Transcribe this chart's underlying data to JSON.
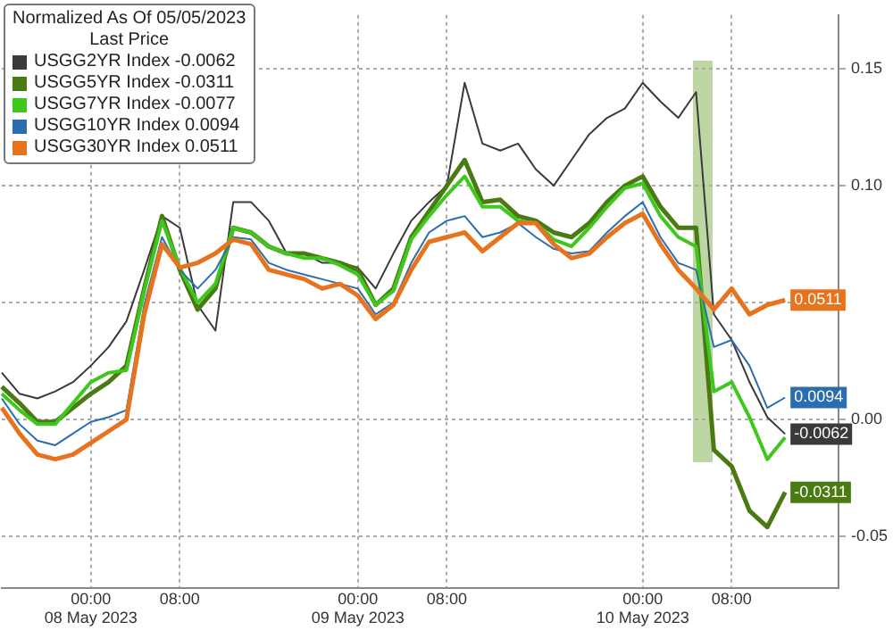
{
  "chart_data": {
    "type": "line",
    "title": "Normalized As Of 05/05/2023",
    "legend_title": "Last Price",
    "legend": "top left",
    "grid": true,
    "categories": [
      null,
      null,
      null,
      null,
      null,
      "00:00\n08 May 2023",
      null,
      null,
      null,
      null,
      "08:00",
      null,
      null,
      null,
      null,
      null,
      null,
      null,
      null,
      null,
      "00:00\n09 May 2023",
      null,
      null,
      null,
      null,
      "08:00",
      null,
      null,
      null,
      null,
      null,
      null,
      null,
      null,
      null,
      null,
      "00:00\n10 May 2023",
      null,
      null,
      null,
      null,
      "08:00",
      null,
      null,
      null,
      null,
      null,
      null
    ],
    "ylim": [
      -0.072,
      0.173
    ],
    "yticks": [
      {
        "value": 0.15,
        "label": "0.15"
      },
      {
        "value": 0.1,
        "label": "0.10"
      },
      {
        "value": 0.05,
        "label": null
      },
      {
        "value": 0,
        "label": "0.00"
      },
      {
        "value": -0.05,
        "label": "-0.05"
      }
    ],
    "series": [
      {
        "name": "USGG2YR Index -0.0062",
        "color": "#3a3a3a",
        "values": [
          0.02,
          0.011,
          0.009,
          0.012,
          0.016,
          0.023,
          0.031,
          0.042,
          0.064,
          0.087,
          0.082,
          0.049,
          0.038,
          0.093,
          0.093,
          0.085,
          0.071,
          0.071,
          0.067,
          0.067,
          0.065,
          0.056,
          0.071,
          0.085,
          0.093,
          0.1,
          0.144,
          0.118,
          0.115,
          0.118,
          0.107,
          0.1,
          0.111,
          0.122,
          0.129,
          0.133,
          0.144,
          0.136,
          0.129,
          0.14,
          0.045,
          0.034,
          0.016,
          0.001,
          -0.0062,
          null,
          null,
          null
        ],
        "value_labels": [
          null,
          null,
          null,
          null,
          null,
          null,
          null,
          null,
          null,
          null,
          null,
          null,
          null,
          null,
          null,
          null,
          null,
          null,
          null,
          null,
          null,
          null,
          null,
          null,
          null,
          null,
          null,
          null,
          null,
          null,
          null,
          null,
          null,
          null,
          null,
          null,
          null,
          null,
          null,
          null,
          null,
          null,
          null,
          null,
          "-0.0062",
          null,
          null,
          null
        ]
      },
      {
        "name": "USGG5YR Index -0.0311",
        "color": "#4a7a12",
        "values": [
          0.014,
          0.007,
          -0.001,
          -0.001,
          0.005,
          0.011,
          0.016,
          0.023,
          0.056,
          0.087,
          0.064,
          0.047,
          0.056,
          0.082,
          0.08,
          0.074,
          0.071,
          0.071,
          0.069,
          0.067,
          0.064,
          0.049,
          0.056,
          0.078,
          0.089,
          0.1,
          0.111,
          0.093,
          0.094,
          0.087,
          0.085,
          0.08,
          0.078,
          0.084,
          0.093,
          0.1,
          0.104,
          0.091,
          0.082,
          0.082,
          -0.013,
          -0.02,
          -0.039,
          -0.046,
          -0.0311,
          null,
          null,
          null
        ],
        "value_labels": [
          null,
          null,
          null,
          null,
          null,
          null,
          null,
          null,
          null,
          null,
          null,
          null,
          null,
          null,
          null,
          null,
          null,
          null,
          null,
          null,
          null,
          null,
          null,
          null,
          null,
          null,
          null,
          null,
          null,
          null,
          null,
          null,
          null,
          null,
          null,
          null,
          null,
          null,
          null,
          null,
          null,
          null,
          null,
          null,
          "-0.0311",
          null,
          null,
          null
        ]
      },
      {
        "name": "USGG7YR Index -0.0077",
        "color": "#3ec81e",
        "values": [
          0.011,
          0.004,
          -0.002,
          -0.002,
          0.007,
          0.016,
          0.02,
          0.021,
          0.055,
          0.085,
          0.065,
          0.05,
          0.058,
          0.082,
          0.08,
          0.074,
          0.071,
          0.069,
          0.069,
          0.066,
          0.062,
          0.049,
          0.055,
          0.077,
          0.087,
          0.096,
          0.104,
          0.091,
          0.091,
          0.085,
          0.084,
          0.077,
          0.074,
          0.082,
          0.091,
          0.099,
          0.101,
          0.087,
          0.078,
          0.074,
          0.012,
          0.016,
          0.001,
          -0.017,
          -0.0077,
          null,
          null,
          null
        ]
      },
      {
        "name": "USGG10YR Index 0.0094",
        "color": "#2a6eb0",
        "values": [
          0.009,
          -0.002,
          -0.009,
          -0.011,
          -0.006,
          -0.001,
          0.001,
          0.004,
          0.049,
          0.078,
          0.064,
          0.056,
          0.064,
          0.078,
          0.077,
          0.067,
          0.064,
          0.062,
          0.06,
          0.058,
          0.056,
          0.045,
          0.05,
          0.067,
          0.08,
          0.085,
          0.087,
          0.078,
          0.08,
          0.084,
          0.078,
          0.073,
          0.071,
          0.072,
          0.08,
          0.087,
          0.093,
          0.078,
          0.067,
          0.064,
          0.031,
          0.034,
          0.023,
          0.005,
          0.0094,
          null,
          null,
          null
        ],
        "value_labels": [
          null,
          null,
          null,
          null,
          null,
          null,
          null,
          null,
          null,
          null,
          null,
          null,
          null,
          null,
          null,
          null,
          null,
          null,
          null,
          null,
          null,
          null,
          null,
          null,
          null,
          null,
          null,
          null,
          null,
          null,
          null,
          null,
          null,
          null,
          null,
          null,
          null,
          null,
          null,
          null,
          null,
          null,
          null,
          null,
          "0.0094",
          null,
          null,
          null
        ]
      },
      {
        "name": "USGG30YR Index 0.0511",
        "color": "#e8731e",
        "values": [
          0.005,
          -0.006,
          -0.015,
          -0.017,
          -0.015,
          -0.01,
          -0.005,
          0.0,
          0.045,
          0.075,
          0.065,
          0.067,
          0.071,
          0.077,
          0.075,
          0.064,
          0.062,
          0.06,
          0.056,
          0.058,
          0.053,
          0.043,
          0.049,
          0.064,
          0.076,
          0.078,
          0.08,
          0.072,
          0.078,
          0.084,
          0.084,
          0.075,
          0.069,
          0.071,
          0.078,
          0.084,
          0.088,
          0.075,
          0.064,
          0.056,
          0.047,
          0.056,
          0.045,
          0.049,
          0.0511,
          null,
          null,
          null
        ],
        "value_labels": [
          null,
          null,
          null,
          null,
          null,
          null,
          null,
          null,
          null,
          null,
          null,
          null,
          null,
          null,
          null,
          null,
          null,
          null,
          null,
          null,
          null,
          null,
          null,
          null,
          null,
          null,
          null,
          null,
          null,
          null,
          null,
          null,
          null,
          null,
          null,
          null,
          null,
          null,
          null,
          null,
          null,
          null,
          null,
          null,
          "0.0511",
          null,
          null,
          null
        ]
      }
    ]
  }
}
